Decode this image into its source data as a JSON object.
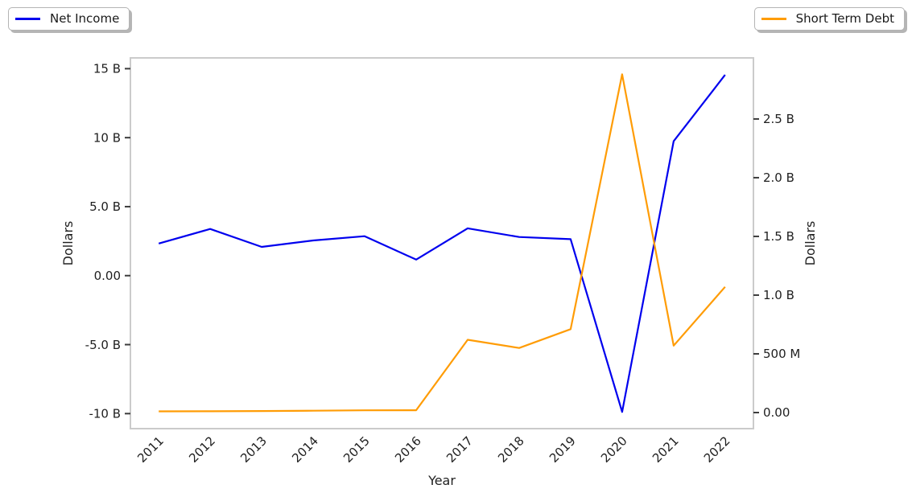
{
  "chart_data": {
    "type": "line",
    "x": [
      2011,
      2012,
      2013,
      2014,
      2015,
      2016,
      2017,
      2018,
      2019,
      2020,
      2021,
      2022
    ],
    "x_tick_labels": [
      "2011",
      "2012",
      "2013",
      "2014",
      "2015",
      "2016",
      "2017",
      "2018",
      "2019",
      "2020",
      "2021",
      "2022"
    ],
    "xlabel": "Year",
    "xlim": [
      2010.45,
      2022.55
    ],
    "grid": false,
    "series": [
      {
        "name": "Net Income",
        "axis": "left",
        "color": "#0000ee",
        "values_billions": [
          2.33,
          3.38,
          2.08,
          2.55,
          2.86,
          1.16,
          3.43,
          2.8,
          2.64,
          -9.88,
          9.74,
          14.55
        ]
      },
      {
        "name": "Short Term Debt",
        "axis": "right",
        "color": "#ff9c05",
        "values_billions": [
          0.01,
          0.011,
          0.013,
          0.016,
          0.019,
          0.02,
          0.62,
          0.55,
          0.71,
          2.88,
          0.57,
          1.07
        ]
      }
    ],
    "left_axis": {
      "label": "Dollars",
      "lim_billions": [
        -11.09,
        15.78
      ],
      "tick_values": [
        15,
        10,
        5,
        0,
        -5,
        -10
      ],
      "tick_labels": [
        "15 B",
        "10 B",
        "5.0 B",
        "0.00",
        "-5.0 B",
        "-10 B"
      ]
    },
    "right_axis": {
      "label": "Dollars",
      "lim_billions": [
        -0.137,
        3.02
      ],
      "tick_values": [
        2.5,
        2.0,
        1.5,
        1.0,
        0.5,
        0.0
      ],
      "tick_labels": [
        "2.5 B",
        "2.0 B",
        "1.5 B",
        "1.0 B",
        "500 M",
        "0.00"
      ]
    },
    "legend_position": {
      "net_income": "top-left",
      "short_term_debt": "top-right"
    }
  },
  "legends": {
    "net_income_label": "Net Income",
    "short_term_debt_label": "Short Term Debt"
  },
  "colors": {
    "net_income_line": "#0000ee",
    "short_term_debt_line": "#ff9c05",
    "plot_border": "#cbcbcb",
    "tick_mark": "#3c3c3c",
    "text": "#1f1f1f",
    "background": "#ffffff"
  }
}
